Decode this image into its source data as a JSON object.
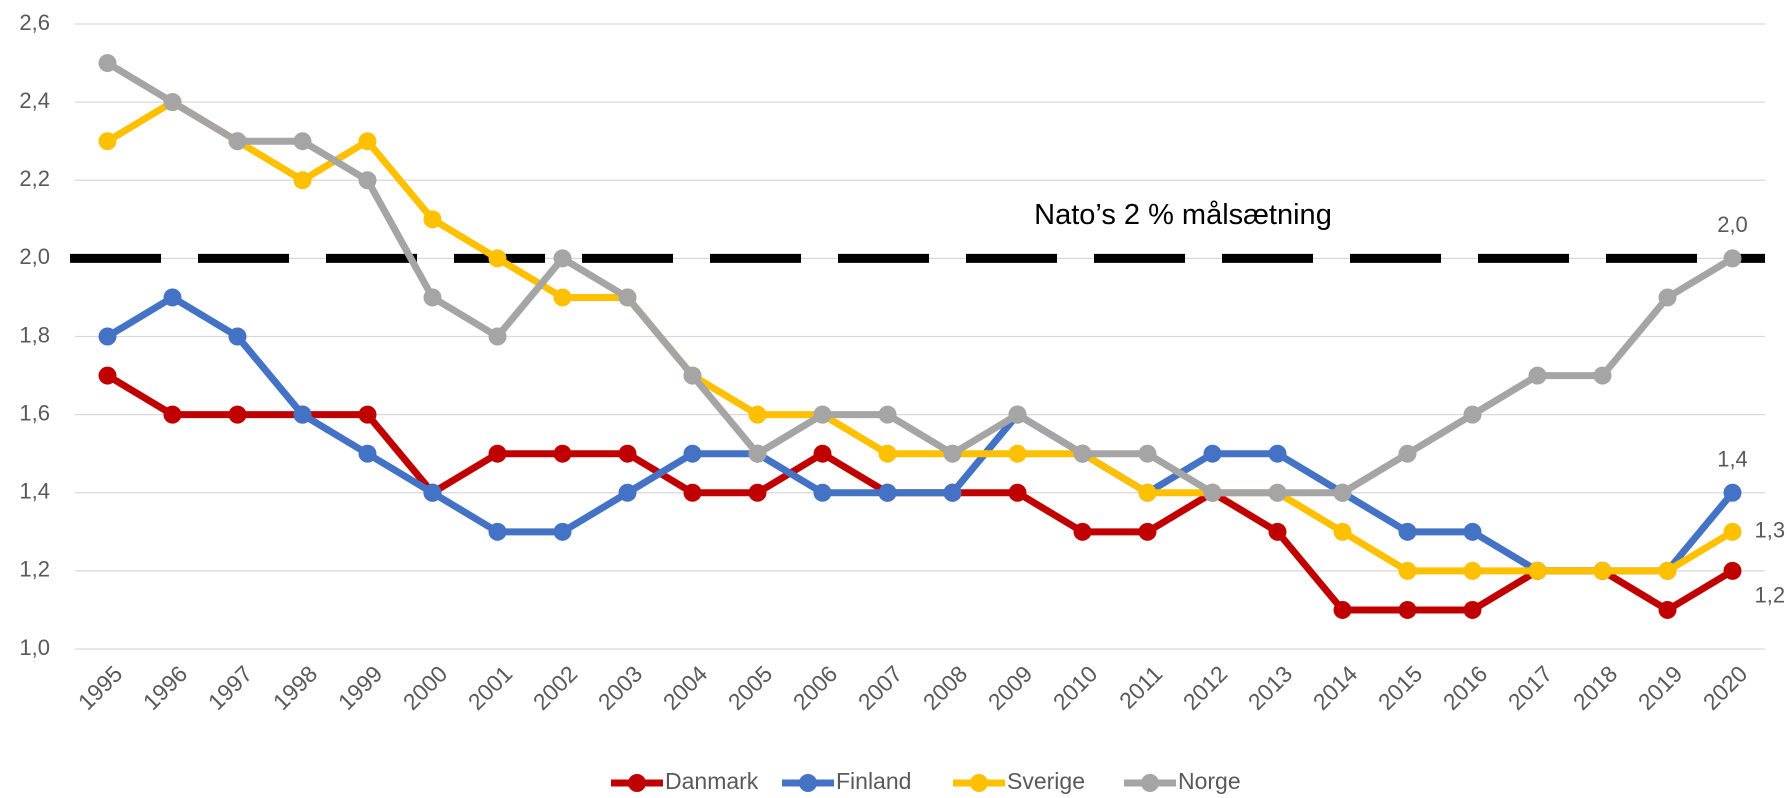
{
  "chart_data": {
    "type": "line",
    "categories": [
      "1995",
      "1996",
      "1997",
      "1998",
      "1999",
      "2000",
      "2001",
      "2002",
      "2003",
      "2004",
      "2005",
      "2006",
      "2007",
      "2008",
      "2009",
      "2010",
      "2011",
      "2012",
      "2013",
      "2014",
      "2015",
      "2016",
      "2017",
      "2018",
      "2019",
      "2020"
    ],
    "series": [
      {
        "name": "Danmark",
        "color": "#c00000",
        "values": [
          1.7,
          1.6,
          1.6,
          1.6,
          1.6,
          1.4,
          1.5,
          1.5,
          1.5,
          1.4,
          1.4,
          1.5,
          1.4,
          1.4,
          1.4,
          1.3,
          1.3,
          1.4,
          1.3,
          1.1,
          1.1,
          1.1,
          1.2,
          1.2,
          1.1,
          1.2
        ],
        "value_labels": [
          null,
          null,
          null,
          null,
          null,
          null,
          null,
          null,
          null,
          null,
          null,
          null,
          null,
          null,
          null,
          null,
          null,
          null,
          null,
          null,
          null,
          null,
          null,
          null,
          null,
          "1,2"
        ]
      },
      {
        "name": "Finland",
        "color": "#4472c4",
        "values": [
          1.8,
          1.9,
          1.8,
          1.6,
          1.5,
          1.4,
          1.3,
          1.3,
          1.4,
          1.5,
          1.5,
          1.4,
          1.4,
          1.4,
          1.6,
          1.5,
          1.4,
          1.5,
          1.5,
          1.4,
          1.3,
          1.3,
          1.2,
          1.2,
          1.2,
          1.4
        ],
        "value_labels": [
          null,
          null,
          null,
          null,
          null,
          null,
          null,
          null,
          null,
          null,
          null,
          null,
          null,
          null,
          null,
          null,
          null,
          null,
          null,
          null,
          null,
          null,
          null,
          null,
          null,
          "1,4"
        ]
      },
      {
        "name": "Sverige",
        "color": "#ffc000",
        "values": [
          2.3,
          2.4,
          2.3,
          2.2,
          2.3,
          2.1,
          2.0,
          1.9,
          1.9,
          1.7,
          1.6,
          1.6,
          1.5,
          1.5,
          1.5,
          1.5,
          1.4,
          1.4,
          1.4,
          1.3,
          1.2,
          1.2,
          1.2,
          1.2,
          1.2,
          1.3
        ],
        "value_labels": [
          null,
          null,
          null,
          null,
          null,
          null,
          null,
          null,
          null,
          null,
          null,
          null,
          null,
          null,
          null,
          null,
          null,
          null,
          null,
          null,
          null,
          null,
          null,
          null,
          null,
          "1,3"
        ]
      },
      {
        "name": "Norge",
        "color": "#a5a5a5",
        "values": [
          2.5,
          2.4,
          2.3,
          2.3,
          2.2,
          1.9,
          1.8,
          2.0,
          1.9,
          1.7,
          1.5,
          1.6,
          1.6,
          1.5,
          1.6,
          1.5,
          1.5,
          1.4,
          1.4,
          1.4,
          1.5,
          1.6,
          1.7,
          1.7,
          1.9,
          2.0
        ],
        "value_labels": [
          null,
          null,
          null,
          null,
          null,
          null,
          null,
          null,
          null,
          null,
          null,
          null,
          null,
          null,
          null,
          null,
          null,
          null,
          null,
          null,
          null,
          null,
          null,
          null,
          null,
          "2,0"
        ]
      }
    ],
    "reference_line": {
      "value": 2.0,
      "label": "Nato’s 2 % målsætning",
      "color": "#000000"
    },
    "ylim": [
      1.0,
      2.6
    ],
    "yticks": [
      {
        "value": 1.0,
        "label": "1,0"
      },
      {
        "value": 1.2,
        "label": "1,2"
      },
      {
        "value": 1.4,
        "label": "1,4"
      },
      {
        "value": 1.6,
        "label": "1,6"
      },
      {
        "value": 1.8,
        "label": "1,8"
      },
      {
        "value": 2.0,
        "label": "2,0"
      },
      {
        "value": 2.2,
        "label": "2,2"
      },
      {
        "value": 2.4,
        "label": "2,4"
      },
      {
        "value": 2.6,
        "label": "2,6"
      }
    ],
    "grid": true,
    "legend": "bottom"
  }
}
